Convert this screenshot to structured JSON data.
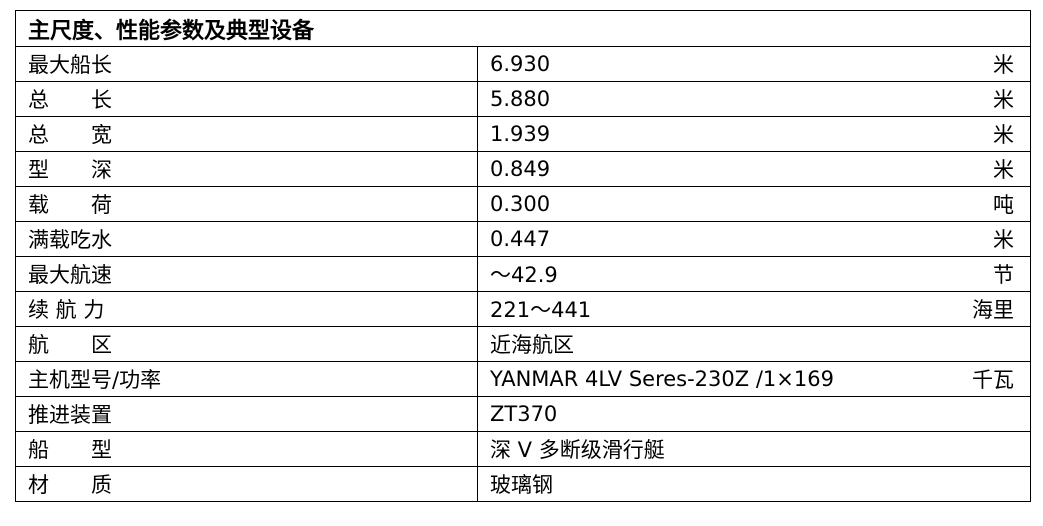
{
  "title": "主尺度、性能参数及典型设备",
  "rows": [
    {
      "label": "最大船长",
      "value": "6.930",
      "unit": "米"
    },
    {
      "label": "总　　长",
      "value": "5.880",
      "unit": "米"
    },
    {
      "label": "总　　宽",
      "value": "1.939",
      "unit": "米"
    },
    {
      "label": "型　　深",
      "value": "0.849",
      "unit": "米"
    },
    {
      "label": "载　　荷",
      "value": "0.300",
      "unit": "吨"
    },
    {
      "label": "满载吃水",
      "value": "0.447",
      "unit": "米"
    },
    {
      "label": "最大航速",
      "value": "～42.9",
      "unit": "节"
    },
    {
      "label": "续 航 力",
      "value": "221～441",
      "unit": "海里"
    },
    {
      "label": "航　　区",
      "value": "近海航区",
      "unit": ""
    },
    {
      "label": "主机型号/功率",
      "value": "YANMAR 4LV Seres-230Z /1×169",
      "unit": "千瓦"
    },
    {
      "label": "推进装置",
      "value": "ZT370",
      "unit": ""
    },
    {
      "label": "船　　型",
      "value": "深 V 多断级滑行艇",
      "unit": ""
    },
    {
      "label": "材　　质",
      "value": "玻璃钢",
      "unit": ""
    }
  ]
}
